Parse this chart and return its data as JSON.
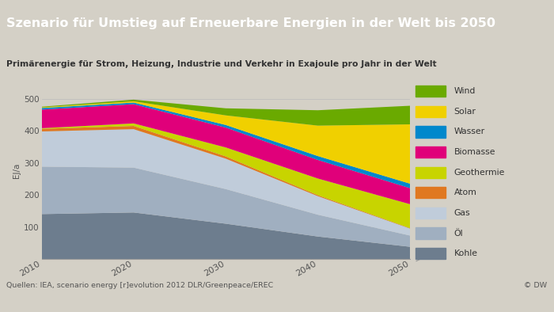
{
  "title": "Szenario für Umstieg auf Erneuerbare Energien in der Welt bis 2050",
  "subtitle": "Primärenergie für Strom, Heizung, Industrie und Verkehr in Exajoule pro Jahr in der Welt",
  "ylabel": "EJ/a",
  "source": "Quellen: IEA, scenario energy [r]evolution 2012 DLR/Greenpeace/EREC",
  "copyright": "© DW",
  "years": [
    2010,
    2020,
    2030,
    2040,
    2050
  ],
  "background_color": "#d4d0c6",
  "title_bg_color": "#5a5a5a",
  "title_text_color": "#ffffff",
  "series": {
    "Kohle": {
      "color": "#6d7d8e",
      "values": [
        140,
        145,
        110,
        70,
        38
      ]
    },
    "Öl": {
      "color": "#a0afc0",
      "values": [
        148,
        140,
        108,
        68,
        35
      ]
    },
    "Gas": {
      "color": "#c0ccda",
      "values": [
        110,
        120,
        95,
        58,
        22
      ]
    },
    "Atom": {
      "color": "#e07820",
      "values": [
        8,
        10,
        7,
        3,
        1
      ]
    },
    "Geothermie": {
      "color": "#c8d400",
      "values": [
        2,
        8,
        28,
        52,
        75
      ]
    },
    "Biomasse": {
      "color": "#e0007a",
      "values": [
        58,
        60,
        62,
        58,
        50
      ]
    },
    "Wasser": {
      "color": "#0088cc",
      "values": [
        5,
        5,
        8,
        12,
        14
      ]
    },
    "Solar": {
      "color": "#f0d000",
      "values": [
        2,
        4,
        30,
        95,
        185
      ]
    },
    "Wind": {
      "color": "#6aaa00",
      "values": [
        2,
        5,
        22,
        48,
        58
      ]
    }
  },
  "ylim": [
    0,
    550
  ],
  "yticks": [
    100,
    200,
    300,
    400,
    500
  ],
  "legend_order": [
    "Wind",
    "Solar",
    "Wasser",
    "Biomasse",
    "Geothermie",
    "Atom",
    "Gas",
    "Öl",
    "Kohle"
  ]
}
